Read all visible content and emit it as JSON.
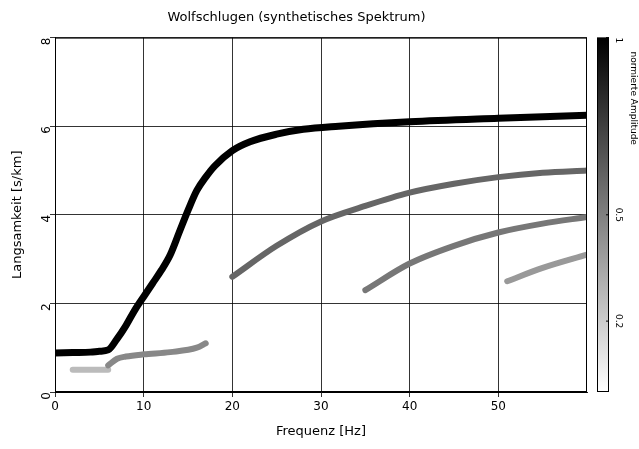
{
  "chart_data": {
    "type": "line",
    "title": "Wolfschlugen (synthetisches Spektrum)",
    "x_label": "Frequenz [Hz]",
    "y_label": "Langsamkeit [s/km]",
    "xlim": [
      0,
      60
    ],
    "xticks": [
      0,
      10,
      20,
      30,
      40,
      50
    ],
    "ylim": [
      0,
      8
    ],
    "yticks": [
      0,
      2,
      4,
      6,
      8
    ],
    "grid": true,
    "series": [
      {
        "color": "#000000",
        "x": [
          0,
          2,
          4,
          5,
          6,
          7,
          8,
          9,
          10,
          11,
          12,
          13,
          14,
          15,
          16,
          17,
          18,
          20,
          22,
          25,
          28,
          32,
          40,
          50,
          60
        ],
        "values": [
          0.88,
          0.89,
          0.9,
          0.92,
          0.95,
          1.2,
          1.5,
          1.85,
          2.15,
          2.45,
          2.75,
          3.1,
          3.6,
          4.1,
          4.55,
          4.85,
          5.1,
          5.45,
          5.65,
          5.82,
          5.93,
          6.0,
          6.1,
          6.18,
          6.25
        ]
      },
      {
        "color": "#666666",
        "x": [
          20,
          25,
          30,
          35,
          40,
          45,
          50,
          55,
          60
        ],
        "values": [
          2.6,
          3.3,
          3.85,
          4.2,
          4.5,
          4.7,
          4.85,
          4.95,
          5.0
        ]
      },
      {
        "color": "#777777",
        "x": [
          35,
          40,
          45,
          50,
          55,
          60
        ],
        "values": [
          2.3,
          2.9,
          3.3,
          3.6,
          3.8,
          3.95
        ]
      },
      {
        "color": "#999999",
        "x": [
          51,
          55,
          60
        ],
        "values": [
          2.5,
          2.8,
          3.1
        ]
      },
      {
        "color": "#888888",
        "x": [
          6,
          7,
          8,
          10,
          13,
          16,
          17
        ],
        "values": [
          0.6,
          0.75,
          0.8,
          0.85,
          0.9,
          1.0,
          1.1
        ]
      },
      {
        "color": "#bbbbbb",
        "x": [
          2,
          4,
          6
        ],
        "values": [
          0.5,
          0.5,
          0.5
        ]
      }
    ],
    "colorbar": {
      "label": "normierte Amplitude",
      "range": [
        0,
        1
      ],
      "ticks": [
        0.2,
        0.5,
        1
      ]
    }
  }
}
